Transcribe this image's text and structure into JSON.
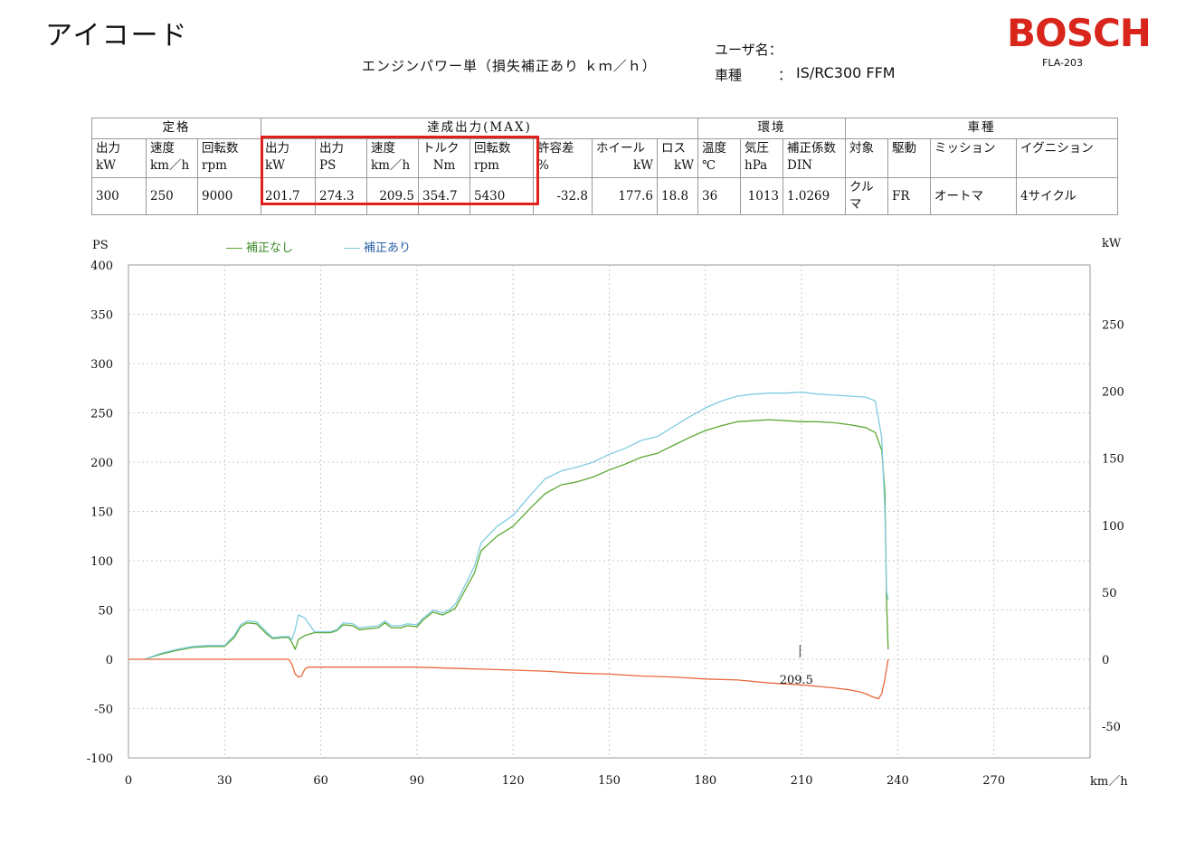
{
  "header": {
    "brand": "アイコード",
    "report_title": "エンジンパワー単（損失補正あり ｋｍ／ｈ）",
    "user_label": "ユーザ名：",
    "vehicle_label": "車種",
    "vehicle_colon": "：",
    "vehicle_value": "IS/RC300 FFM",
    "logo": "BOSCH",
    "model_code": "FLA-203"
  },
  "table": {
    "groups": [
      "定格",
      "達成出力(MAX)",
      "環境",
      "車種"
    ],
    "headers": [
      [
        "出力",
        "kW"
      ],
      [
        "速度",
        "km／h"
      ],
      [
        "回転数",
        "rpm"
      ],
      [
        "出力",
        "kW"
      ],
      [
        "出力",
        "PS"
      ],
      [
        "速度",
        "km／h"
      ],
      [
        "トルク",
        "Nm"
      ],
      [
        "回転数",
        "rpm"
      ],
      [
        "許容差",
        "%"
      ],
      [
        "ホイール",
        "kW"
      ],
      [
        "ロス",
        "kW"
      ],
      [
        "温度",
        "℃"
      ],
      [
        "気圧",
        "hPa"
      ],
      [
        "補正係数",
        "DIN"
      ],
      [
        "対象",
        ""
      ],
      [
        "駆動",
        ""
      ],
      [
        "ミッション",
        ""
      ],
      [
        "イグニション",
        ""
      ]
    ],
    "values": [
      "300",
      "250",
      "9000",
      "201.7",
      "274.3",
      "209.5",
      "354.7",
      "5430",
      "-32.8",
      "177.6",
      "18.8",
      "36",
      "1013",
      "1.0269",
      "クルマ",
      "FR",
      "オートマ",
      "4サイクル"
    ],
    "highlight_color": "#e0201c"
  },
  "chart_data": {
    "type": "line",
    "y_left_label": "PS",
    "y_right_label": "kW",
    "x_unit_label": "km／h",
    "xlim": [
      0,
      300
    ],
    "ylim_left": [
      -100,
      400
    ],
    "ylim_right": [
      -73.55,
      294.2
    ],
    "x_ticks": [
      0,
      30,
      60,
      90,
      120,
      150,
      180,
      210,
      240,
      270
    ],
    "y_left_ticks": [
      400,
      350,
      300,
      250,
      200,
      150,
      100,
      50,
      0,
      -50,
      -100
    ],
    "y_right_ticks": [
      250,
      200,
      150,
      100,
      50,
      0,
      -50
    ],
    "grid": true,
    "legend_position": "top-left",
    "annotation": "209.5",
    "annotation_x": 209.5,
    "series": [
      {
        "name": "補正なし",
        "color": "#5aa832",
        "x": [
          5,
          10,
          15,
          20,
          25,
          30,
          33,
          35,
          37,
          40,
          43,
          45,
          48,
          50,
          51,
          52,
          53,
          55,
          58,
          60,
          63,
          65,
          67,
          70,
          72,
          75,
          78,
          80,
          82,
          85,
          87,
          90,
          92,
          95,
          98,
          100,
          102,
          105,
          108,
          110,
          115,
          120,
          125,
          130,
          135,
          140,
          145,
          150,
          155,
          160,
          165,
          170,
          175,
          180,
          185,
          190,
          195,
          200,
          205,
          210,
          215,
          220,
          225,
          230,
          233,
          235,
          236,
          236.5,
          237
        ],
        "y": [
          0,
          5,
          9,
          12,
          13,
          13,
          22,
          33,
          37,
          36,
          26,
          21,
          22,
          22,
          17,
          10,
          20,
          24,
          27,
          27,
          27,
          29,
          35,
          34,
          30,
          31,
          32,
          37,
          32,
          32,
          34,
          33,
          40,
          48,
          45,
          48,
          52,
          70,
          88,
          110,
          125,
          135,
          152,
          168,
          177,
          180,
          185,
          192,
          198,
          205,
          209,
          217,
          225,
          232,
          237,
          241,
          242,
          243,
          242,
          241,
          241,
          240,
          238,
          235,
          230,
          212,
          170,
          60,
          10
        ],
        "hidden_label": "corrected-off"
      },
      {
        "name": "補正あり",
        "color": "#7fcbe0",
        "x": [
          5,
          10,
          15,
          20,
          25,
          30,
          33,
          35,
          37,
          40,
          43,
          45,
          48,
          50,
          51,
          52,
          53,
          55,
          58,
          60,
          63,
          65,
          67,
          70,
          72,
          75,
          78,
          80,
          82,
          85,
          87,
          90,
          92,
          95,
          98,
          100,
          102,
          105,
          108,
          110,
          115,
          120,
          125,
          130,
          135,
          140,
          145,
          150,
          155,
          160,
          165,
          170,
          175,
          180,
          185,
          190,
          195,
          200,
          205,
          210,
          215,
          220,
          225,
          230,
          233,
          235,
          236,
          236.5,
          237
        ],
        "y": [
          0,
          6,
          10,
          13,
          14,
          14,
          24,
          35,
          39,
          38,
          28,
          22,
          23,
          23,
          20,
          30,
          45,
          42,
          28,
          28,
          28,
          30,
          37,
          36,
          32,
          33,
          34,
          39,
          34,
          34,
          36,
          35,
          42,
          50,
          47,
          50,
          56,
          75,
          95,
          118,
          135,
          146,
          165,
          183,
          191,
          195,
          200,
          208,
          214,
          222,
          226,
          236,
          246,
          255,
          262,
          267,
          269,
          270,
          270,
          271,
          269,
          268,
          267,
          266,
          262,
          225,
          150,
          70,
          60
        ]
      },
      {
        "name": "",
        "color": "#e8683c",
        "x": [
          0,
          10,
          20,
          30,
          40,
          45,
          48,
          50,
          51,
          52,
          53,
          54,
          55,
          56,
          60,
          70,
          80,
          90,
          100,
          110,
          120,
          130,
          140,
          150,
          160,
          170,
          180,
          190,
          200,
          210,
          220,
          225,
          228,
          230,
          232,
          234,
          235,
          236,
          237
        ],
        "y": [
          0,
          0,
          0,
          0,
          0,
          0,
          0,
          0,
          -5,
          -15,
          -18,
          -17,
          -10,
          -8,
          -8,
          -8,
          -8,
          -8,
          -9,
          -10,
          -11,
          -12,
          -14,
          -15,
          -17,
          -18,
          -20,
          -21,
          -24,
          -26,
          -29,
          -31,
          -33,
          -35,
          -38,
          -40,
          -35,
          -20,
          0
        ]
      }
    ]
  }
}
